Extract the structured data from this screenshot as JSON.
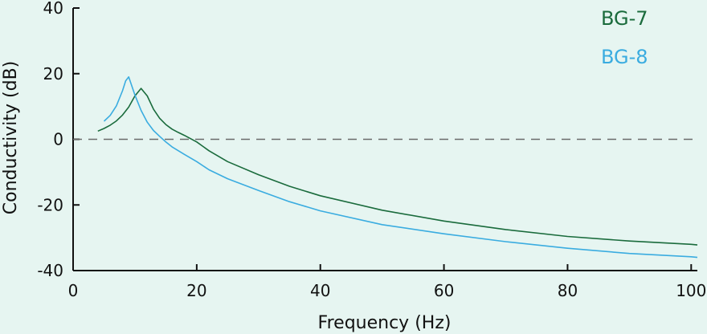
{
  "chart_data": {
    "type": "line",
    "xlabel": "Frequency (Hz)",
    "ylabel": "Conductivity (dB)",
    "xlim": [
      0,
      101
    ],
    "ylim": [
      -40,
      40
    ],
    "xticks": [
      0,
      20,
      40,
      60,
      80,
      100
    ],
    "xtick_labels": [
      "0",
      "20",
      "40",
      "60",
      "80",
      "100"
    ],
    "yticks": [
      -40,
      -20,
      0,
      20,
      40
    ],
    "ytick_labels": [
      "-40",
      "-20",
      "0",
      "20",
      "40"
    ],
    "reference_line": {
      "y": 0,
      "style": "dashed"
    },
    "grid": false,
    "legend_position": "top-right",
    "series": [
      {
        "name": "BG-7",
        "color": "#1a6b3c",
        "x": [
          4,
          5,
          6,
          7,
          8,
          9,
          10,
          11,
          12,
          13,
          14,
          15,
          16,
          17,
          18,
          20,
          22,
          25,
          30,
          35,
          40,
          50,
          60,
          70,
          80,
          90,
          100,
          101
        ],
        "y": [
          2.5,
          3.3,
          4.3,
          5.6,
          7.4,
          9.8,
          13.2,
          15.5,
          13.2,
          9.2,
          6.4,
          4.5,
          3.1,
          2.1,
          1.2,
          -0.8,
          -3.5,
          -6.8,
          -10.8,
          -14.3,
          -17.2,
          -21.6,
          -24.9,
          -27.5,
          -29.6,
          -31.0,
          -32.0,
          -32.2
        ]
      },
      {
        "name": "BG-8",
        "color": "#3aace0",
        "x": [
          5,
          6,
          7,
          8,
          8.5,
          9,
          10,
          11,
          12,
          13,
          14,
          15,
          16,
          18,
          20,
          22,
          25,
          30,
          35,
          40,
          50,
          60,
          70,
          80,
          90,
          100,
          101
        ],
        "y": [
          5.5,
          7.3,
          10.2,
          14.8,
          17.8,
          19.0,
          13.5,
          8.8,
          5.2,
          2.7,
          0.9,
          -0.8,
          -2.3,
          -4.6,
          -6.8,
          -9.3,
          -12.0,
          -15.6,
          -19.0,
          -21.8,
          -26.0,
          -28.8,
          -31.2,
          -33.2,
          -34.8,
          -35.8,
          -36.0
        ]
      }
    ]
  }
}
